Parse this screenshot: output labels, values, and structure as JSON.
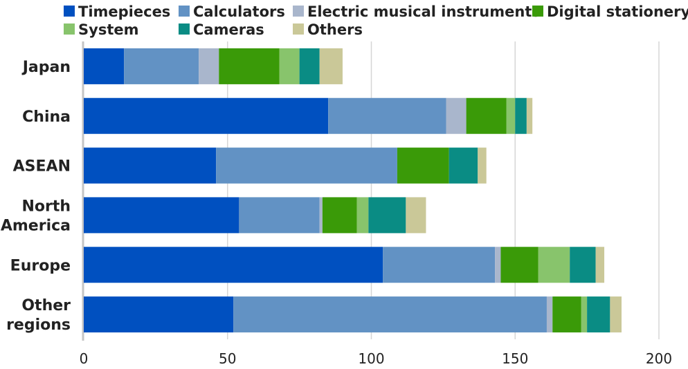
{
  "chart_data": {
    "type": "bar",
    "orientation": "horizontal",
    "stacked": true,
    "categories": [
      "Japan",
      "China",
      "ASEAN",
      "North America",
      "Europe",
      "Other regions"
    ],
    "category_lines": [
      [
        "Japan"
      ],
      [
        "China"
      ],
      [
        "ASEAN"
      ],
      [
        "North",
        "America"
      ],
      [
        "Europe"
      ],
      [
        "Other",
        "regions"
      ]
    ],
    "series": [
      {
        "name": "Timepieces",
        "color": "#0050C0",
        "values": [
          14,
          85,
          46,
          54,
          104,
          52
        ]
      },
      {
        "name": "Calculators",
        "color": "#6292C4",
        "values": [
          26,
          41,
          63,
          28,
          39,
          109
        ]
      },
      {
        "name": "Electric musical instruments",
        "color": "#A9B6CC",
        "values": [
          7,
          7,
          0,
          1,
          2,
          2
        ]
      },
      {
        "name": "Digital stationery",
        "color": "#3A9A08",
        "values": [
          21,
          14,
          18,
          12,
          13,
          10
        ]
      },
      {
        "name": "System",
        "color": "#88C46C",
        "values": [
          7,
          3,
          0,
          4,
          11,
          2
        ]
      },
      {
        "name": "Cameras",
        "color": "#0A8C84",
        "values": [
          7,
          4,
          10,
          13,
          9,
          8
        ]
      },
      {
        "name": "Others",
        "color": "#CAC898",
        "values": [
          8,
          2,
          3,
          7,
          3,
          4
        ]
      }
    ],
    "xlim": [
      0,
      200
    ],
    "xticks": [
      0,
      50,
      100,
      150,
      200
    ],
    "grid": true,
    "legend_position": "top",
    "title": "",
    "xlabel": "",
    "ylabel": ""
  }
}
